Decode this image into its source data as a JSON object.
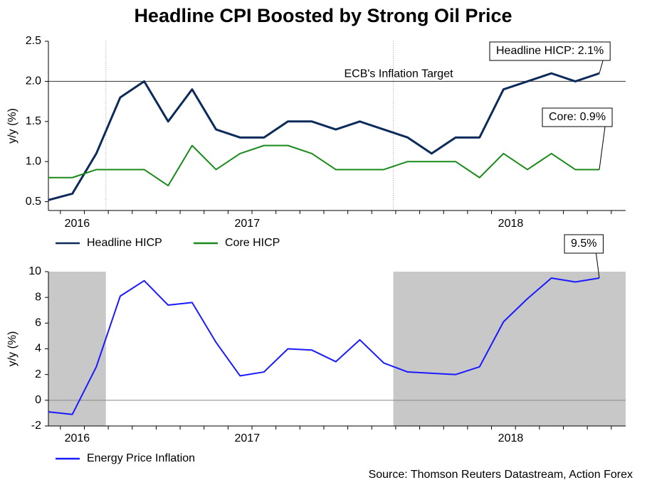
{
  "title": "Headline CPI Boosted by Strong Oil Price",
  "source": "Source: Thomson Reuters Datastream, Action Forex",
  "chart_data": [
    {
      "type": "line",
      "ylabel": "y/y (%)",
      "x": [
        0,
        1,
        2,
        3,
        4,
        5,
        6,
        7,
        8,
        9,
        10,
        11,
        12,
        13,
        14,
        15,
        16,
        17,
        18,
        19,
        20,
        21,
        22,
        23
      ],
      "xlim": [
        0,
        24.1
      ],
      "xticks": [
        {
          "value": 1.2,
          "label": "2016"
        },
        {
          "value": 8.3,
          "label": "2017"
        },
        {
          "value": 19.3,
          "label": "2018"
        }
      ],
      "dividers": [
        2.4,
        14.4
      ],
      "ylim": [
        0.39,
        2.5
      ],
      "yticks": [
        0.5,
        {
          "value": 1.0,
          "label": "1.0"
        },
        1.5,
        {
          "value": 2.0,
          "label": "2.0"
        },
        2.5
      ],
      "reference": {
        "value": 2.0,
        "label": "ECB's Inflation Target"
      },
      "series": [
        {
          "name": "Headline HICP",
          "color": "#0d2b5a",
          "values": [
            0.52,
            0.6,
            1.1,
            1.8,
            2.0,
            1.5,
            1.9,
            1.4,
            1.3,
            1.3,
            1.5,
            1.5,
            1.4,
            1.5,
            1.4,
            1.3,
            1.1,
            1.3,
            1.3,
            1.9,
            2.0,
            2.1,
            2.0,
            2.1
          ]
        },
        {
          "name": "Core HICP",
          "color": "#1a8a1a",
          "values": [
            0.8,
            0.8,
            0.9,
            0.9,
            0.9,
            0.7,
            1.2,
            0.9,
            1.1,
            1.2,
            1.2,
            1.1,
            0.9,
            0.9,
            0.9,
            1.0,
            1.0,
            1.0,
            0.8,
            1.1,
            0.9,
            1.1,
            0.9,
            0.9
          ]
        }
      ],
      "annotations": [
        "Headline HICP: 2.1%",
        "Core: 0.9%"
      ]
    },
    {
      "type": "line",
      "ylabel": "y/y (%)",
      "x": [
        0,
        1,
        2,
        3,
        4,
        5,
        6,
        7,
        8,
        9,
        10,
        11,
        12,
        13,
        14,
        15,
        16,
        17,
        18,
        19,
        20,
        21,
        22,
        23
      ],
      "xlim": [
        0,
        24.1
      ],
      "xticks": [
        {
          "value": 1.2,
          "label": "2016"
        },
        {
          "value": 8.3,
          "label": "2017"
        },
        {
          "value": 19.3,
          "label": "2018"
        }
      ],
      "shaded": [
        [
          0,
          2.4
        ],
        [
          14.4,
          24.1
        ]
      ],
      "shade_color": "#c8c8c8",
      "ylim": [
        -2,
        10
      ],
      "yticks": [
        -2,
        0,
        2,
        4,
        6,
        8,
        10
      ],
      "zero_line": true,
      "series": [
        {
          "name": "Energy Price Inflation",
          "color": "#1a1aff",
          "values": [
            -0.9,
            -1.1,
            2.6,
            8.1,
            9.3,
            7.4,
            7.6,
            4.5,
            1.9,
            2.2,
            4.0,
            3.9,
            3.0,
            4.7,
            2.9,
            2.2,
            2.1,
            2.0,
            2.6,
            6.1,
            7.9,
            9.5,
            9.2,
            9.5
          ]
        }
      ],
      "annotations": [
        "9.5%"
      ]
    }
  ]
}
